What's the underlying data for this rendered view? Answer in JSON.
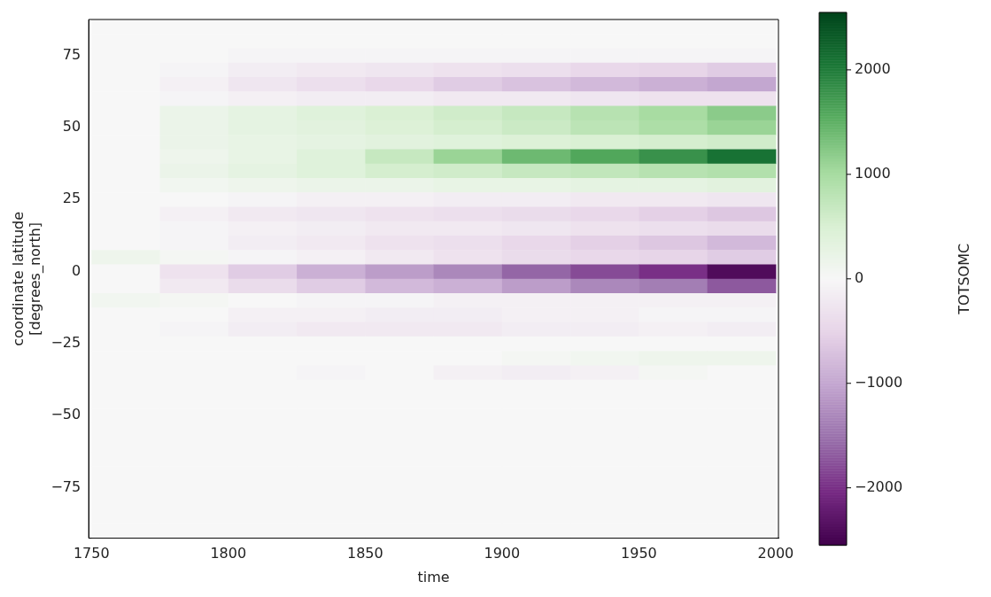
{
  "chart_data": {
    "type": "heatmap",
    "xlabel": "time",
    "ylabel": "coordinate latitude\n[degrees_north]",
    "clabel": "TOTSOMC",
    "x": [
      1762.5,
      1787.5,
      1812.5,
      1837.5,
      1862.5,
      1887.5,
      1912.5,
      1937.5,
      1962.5,
      1987.5
    ],
    "cells": [
      [
        0,
        0,
        0,
        0,
        0,
        0,
        0,
        0,
        0,
        0
      ],
      [
        0,
        0,
        0,
        0,
        0,
        0,
        0,
        0,
        0,
        0
      ],
      [
        0,
        0,
        -50,
        -50,
        -50,
        -50,
        -50,
        -50,
        -50,
        -50
      ],
      [
        0,
        -50,
        -150,
        -200,
        -250,
        -300,
        -350,
        -450,
        -500,
        -600
      ],
      [
        0,
        -100,
        -250,
        -350,
        -450,
        -600,
        -700,
        -800,
        -900,
        -1000
      ],
      [
        0,
        -50,
        -100,
        -150,
        -150,
        -200,
        -200,
        -250,
        -300,
        -300
      ],
      [
        0,
        200,
        300,
        400,
        500,
        600,
        700,
        850,
        1000,
        1200
      ],
      [
        0,
        200,
        300,
        350,
        450,
        550,
        650,
        800,
        950,
        1100
      ],
      [
        0,
        200,
        250,
        300,
        350,
        400,
        450,
        500,
        550,
        600
      ],
      [
        0,
        150,
        250,
        400,
        700,
        1100,
        1400,
        1600,
        1800,
        2100
      ],
      [
        0,
        200,
        300,
        400,
        550,
        600,
        700,
        750,
        850,
        900
      ],
      [
        0,
        100,
        150,
        200,
        200,
        250,
        250,
        300,
        300,
        350
      ],
      [
        0,
        0,
        -50,
        -100,
        -100,
        -150,
        -150,
        -200,
        -200,
        -250
      ],
      [
        0,
        -100,
        -200,
        -250,
        -300,
        -350,
        -400,
        -450,
        -550,
        -650
      ],
      [
        0,
        -50,
        -100,
        -150,
        -200,
        -200,
        -250,
        -300,
        -350,
        -400
      ],
      [
        0,
        -50,
        -150,
        -200,
        -300,
        -350,
        -450,
        -550,
        -650,
        -800
      ],
      [
        150,
        50,
        -50,
        -100,
        -200,
        -300,
        -400,
        -450,
        -500,
        -600
      ],
      [
        0,
        -300,
        -600,
        -900,
        -1100,
        -1300,
        -1600,
        -1800,
        -2000,
        -2400
      ],
      [
        0,
        -200,
        -400,
        -600,
        -800,
        -900,
        -1100,
        -1300,
        -1400,
        -1700
      ],
      [
        100,
        50,
        0,
        -50,
        -50,
        -100,
        -100,
        -100,
        -100,
        -100
      ],
      [
        0,
        0,
        -100,
        -100,
        -150,
        -150,
        -100,
        -100,
        -50,
        -50
      ],
      [
        0,
        -50,
        -150,
        -200,
        -200,
        -200,
        -150,
        -150,
        -100,
        -150
      ],
      [
        0,
        0,
        0,
        0,
        0,
        0,
        0,
        0,
        0,
        0
      ],
      [
        0,
        0,
        0,
        0,
        0,
        0,
        50,
        100,
        150,
        150
      ],
      [
        0,
        0,
        0,
        -50,
        0,
        -100,
        -150,
        -100,
        50,
        0
      ],
      [
        0,
        0,
        0,
        0,
        0,
        0,
        0,
        0,
        0,
        0
      ],
      [
        0,
        0,
        0,
        0,
        0,
        0,
        0,
        0,
        0,
        0
      ],
      [
        0,
        0,
        0,
        0,
        0,
        0,
        0,
        0,
        0,
        0
      ],
      [
        0,
        0,
        0,
        0,
        0,
        0,
        0,
        0,
        0,
        0
      ],
      [
        0,
        0,
        0,
        0,
        0,
        0,
        0,
        0,
        0,
        0
      ],
      [
        0,
        0,
        0,
        0,
        0,
        0,
        0,
        0,
        0,
        0
      ],
      [
        0,
        0,
        0,
        0,
        0,
        0,
        0,
        0,
        0,
        0
      ],
      [
        0,
        0,
        0,
        0,
        0,
        0,
        0,
        0,
        0,
        0
      ],
      [
        0,
        0,
        0,
        0,
        0,
        0,
        0,
        0,
        0,
        0
      ],
      [
        0,
        0,
        0,
        0,
        0,
        0,
        0,
        0,
        0,
        0
      ],
      [
        0,
        0,
        0,
        0,
        0,
        0,
        0,
        0,
        0,
        0
      ]
    ],
    "xlim": [
      1749,
      2001
    ],
    "xticks": [
      1750,
      1800,
      1850,
      1900,
      1950,
      2000
    ],
    "ylim": [
      -92.5,
      87.5
    ],
    "yticks": [
      {
        "value": -75,
        "label": "−75"
      },
      {
        "value": -50,
        "label": "−50"
      },
      {
        "value": -25,
        "label": "−25"
      },
      0,
      25,
      50,
      75
    ],
    "clim": [
      -2550,
      2550
    ],
    "cticks": [
      {
        "value": -2000,
        "label": "−2000"
      },
      {
        "value": -1000,
        "label": "−1000"
      },
      0,
      1000,
      2000
    ]
  }
}
